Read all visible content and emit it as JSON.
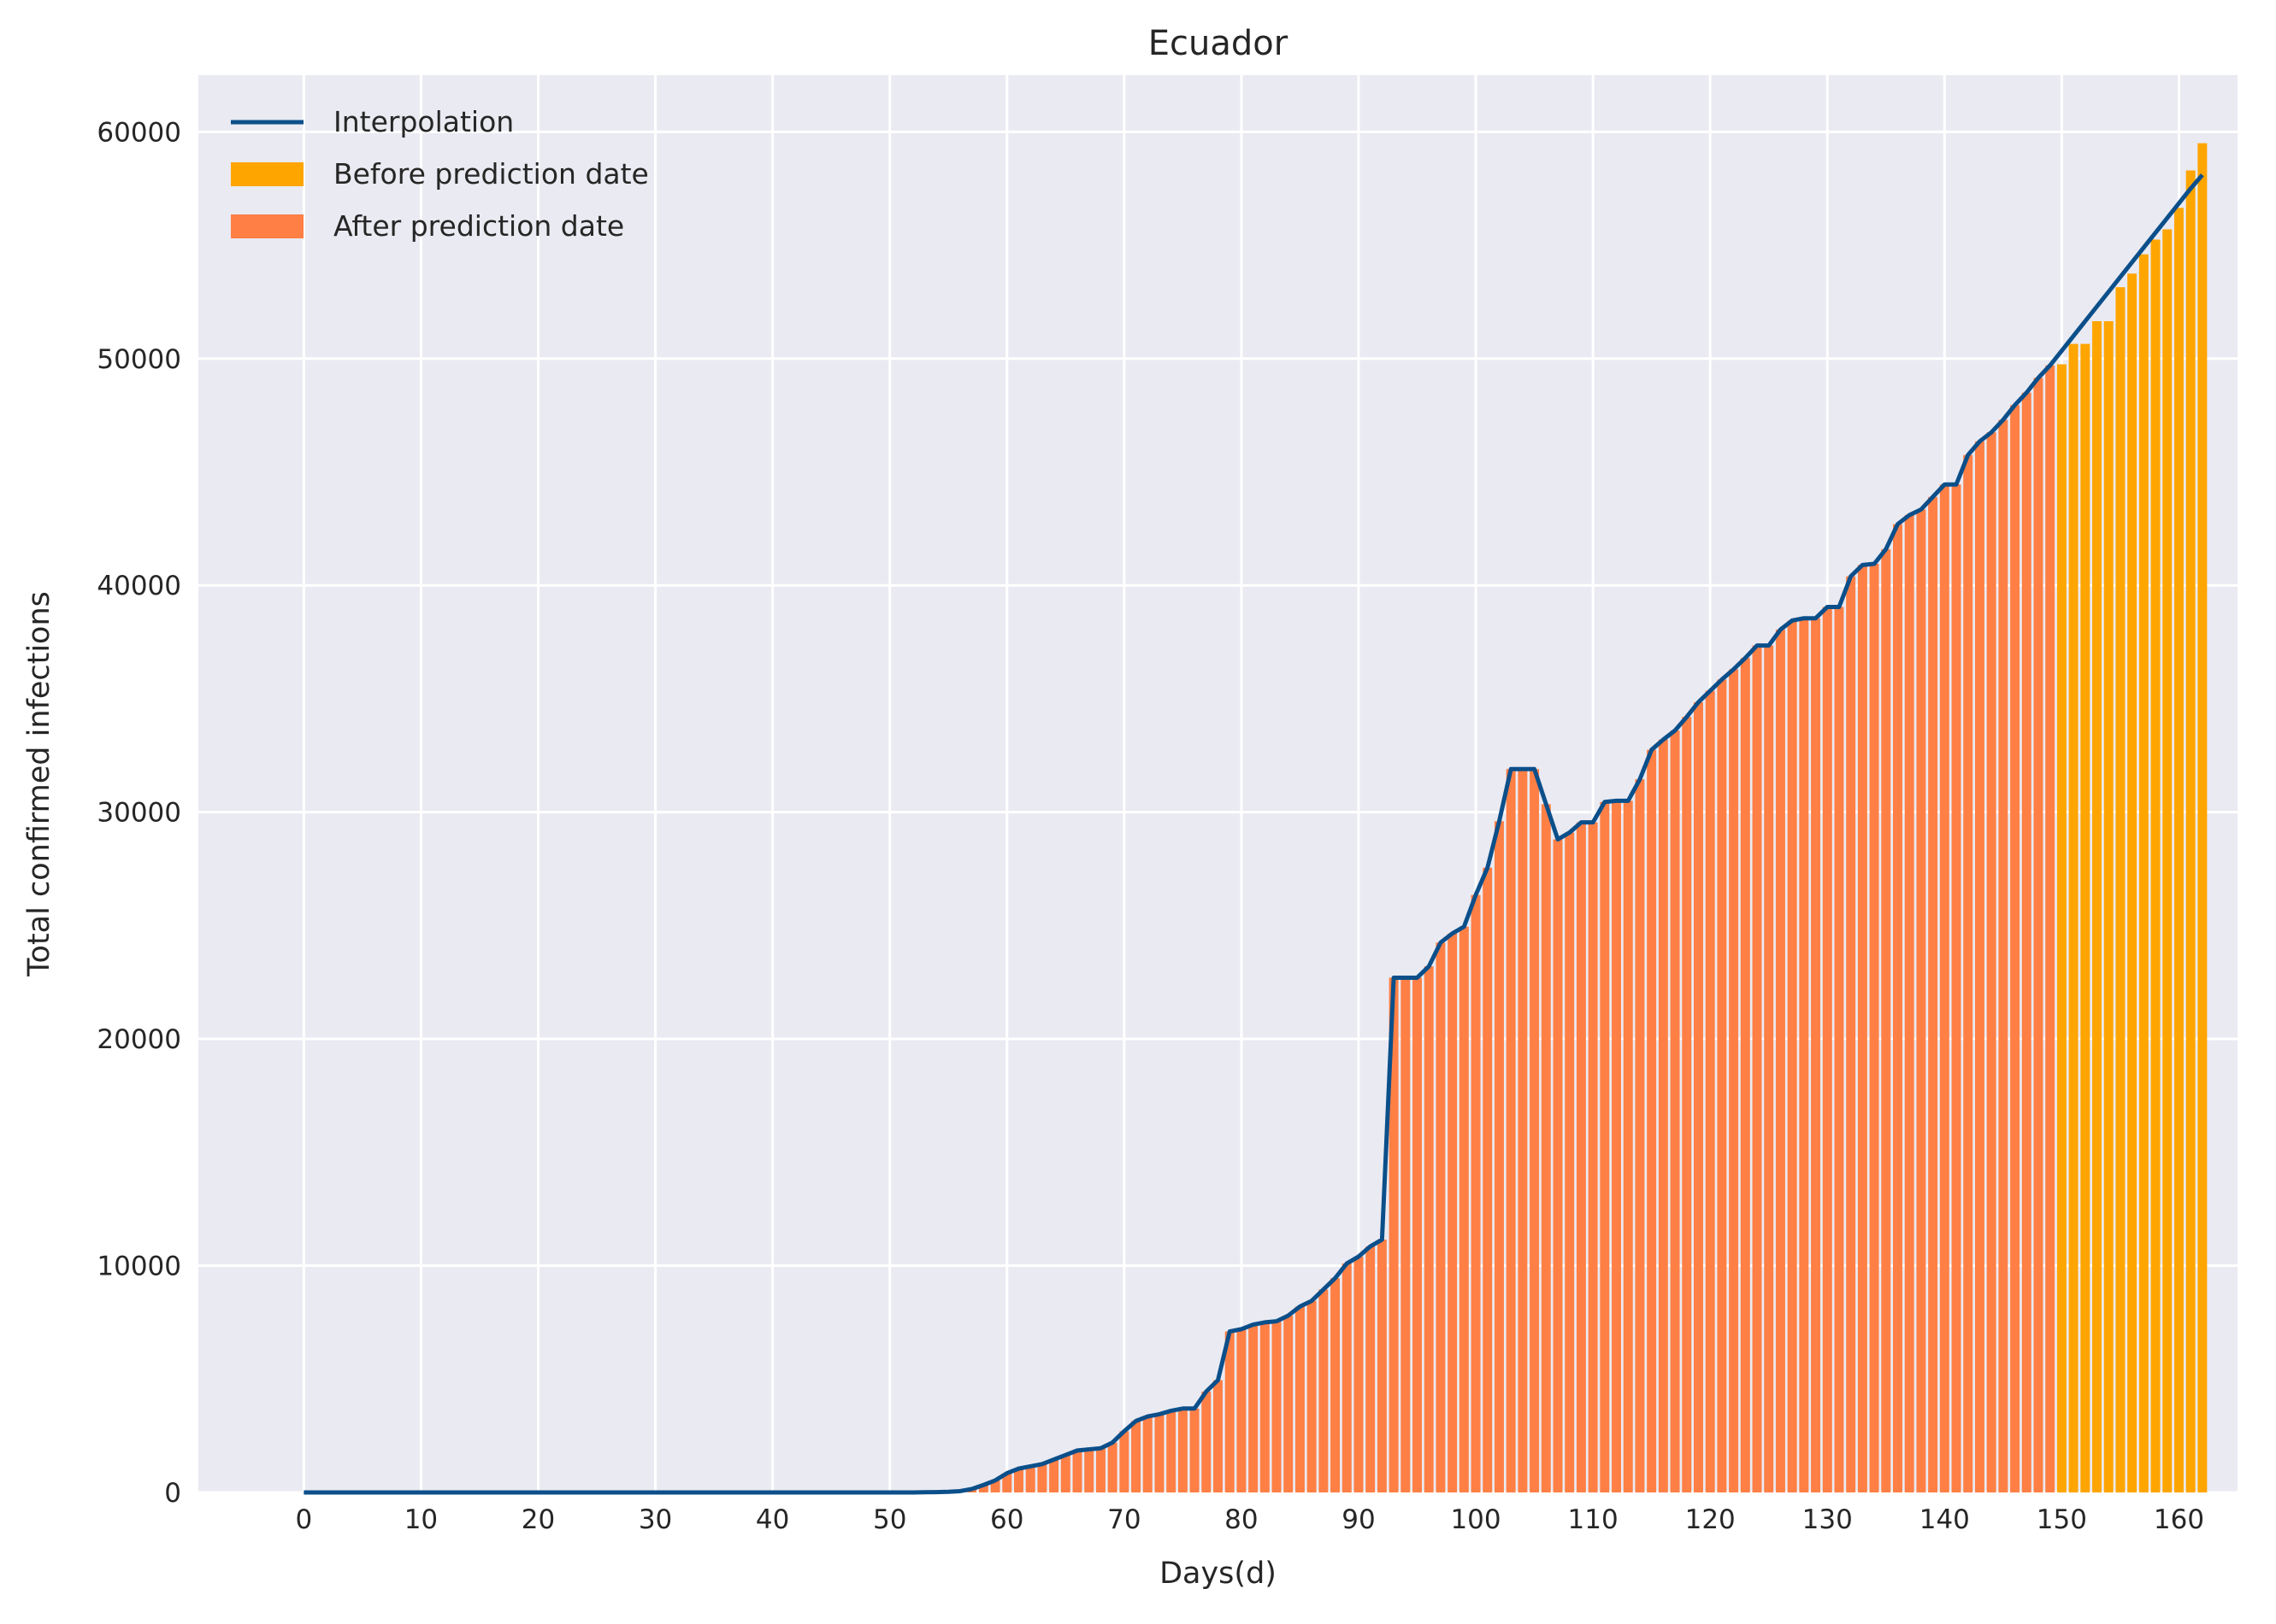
{
  "chart_data": {
    "type": "bar",
    "title": "Ecuador",
    "xlabel": "Days(d)",
    "ylabel": "Total confirmed infections",
    "xlim": [
      -9,
      165
    ],
    "ylim": [
      0,
      62500
    ],
    "xticks": [
      0,
      10,
      20,
      30,
      40,
      50,
      60,
      70,
      80,
      90,
      100,
      110,
      120,
      130,
      140,
      150,
      160
    ],
    "yticks": [
      0,
      10000,
      20000,
      30000,
      40000,
      50000,
      60000
    ],
    "grid": true,
    "legend_position": "top-left",
    "prediction_split_day": 150,
    "legend": [
      {
        "label": "Interpolation",
        "kind": "line",
        "color": "#0b4f8a"
      },
      {
        "label": "Before prediction date",
        "kind": "patch",
        "color": "#ffa500"
      },
      {
        "label": "After prediction date",
        "kind": "patch",
        "color": "#ff7f45"
      }
    ],
    "colors": {
      "background": "#eaeaf2",
      "after_bars": "#ff7f45",
      "before_bars": "#ffa500",
      "interpolation_line": "#0b4f8a"
    },
    "series": [
      {
        "name": "After prediction date",
        "x_start": 0,
        "values": [
          0,
          0,
          0,
          0,
          0,
          0,
          0,
          0,
          0,
          0,
          0,
          0,
          0,
          0,
          0,
          0,
          0,
          0,
          0,
          0,
          0,
          0,
          0,
          0,
          0,
          0,
          0,
          0,
          0,
          0,
          0,
          0,
          0,
          0,
          0,
          0,
          0,
          0,
          0,
          0,
          0,
          0,
          0,
          0,
          0,
          0,
          0,
          0,
          0,
          0,
          0,
          0,
          0,
          10,
          15,
          28,
          58,
          150,
          330,
          530,
          850,
          1050,
          1150,
          1250,
          1450,
          1650,
          1850,
          1900,
          1950,
          2200,
          2700,
          3150,
          3350,
          3450,
          3600,
          3700,
          3700,
          4450,
          4950,
          7100,
          7200,
          7400,
          7500,
          7550,
          7800,
          8200,
          8450,
          8950,
          9450,
          10100,
          10400,
          10850,
          11150,
          22700,
          22700,
          22700,
          23200,
          24250,
          24650,
          24950,
          26350,
          27550,
          29600,
          31900,
          31900,
          31900,
          30350,
          28800,
          29100,
          29550,
          29550,
          30450,
          30500,
          30500,
          31450,
          32750,
          33200,
          33600,
          34200,
          34850,
          35350,
          35850,
          36300,
          36800,
          37350,
          37350,
          38050,
          38450,
          38550,
          38550,
          39050,
          39050,
          40400,
          40900,
          40950,
          41600,
          42700,
          43100,
          43350,
          43900,
          44450,
          44450,
          45750,
          46350,
          46750,
          47300,
          47950,
          48500,
          49150,
          49700
        ]
      },
      {
        "name": "Before prediction date",
        "x_start": 150,
        "values": [
          49750,
          50650,
          50650,
          51650,
          51650,
          53150,
          53750,
          54600,
          55250,
          55700,
          56650,
          58300,
          59500
        ]
      },
      {
        "name": "Interpolation",
        "x_start": 0,
        "values": [
          0,
          0,
          0,
          0,
          0,
          0,
          0,
          0,
          0,
          0,
          0,
          0,
          0,
          0,
          0,
          0,
          0,
          0,
          0,
          0,
          0,
          0,
          0,
          0,
          0,
          0,
          0,
          0,
          0,
          0,
          0,
          0,
          0,
          0,
          0,
          0,
          0,
          0,
          0,
          0,
          0,
          0,
          0,
          0,
          0,
          0,
          0,
          0,
          0,
          0,
          0,
          0,
          0,
          10,
          15,
          28,
          58,
          150,
          330,
          530,
          850,
          1050,
          1150,
          1250,
          1450,
          1650,
          1850,
          1900,
          1950,
          2200,
          2700,
          3150,
          3350,
          3450,
          3600,
          3700,
          3700,
          4450,
          4950,
          7100,
          7200,
          7400,
          7500,
          7550,
          7800,
          8200,
          8450,
          8950,
          9450,
          10100,
          10400,
          10850,
          11150,
          22700,
          22700,
          22700,
          23200,
          24250,
          24650,
          24950,
          26350,
          27550,
          29600,
          31900,
          31900,
          31900,
          30350,
          28800,
          29100,
          29550,
          29550,
          30450,
          30500,
          30500,
          31450,
          32750,
          33200,
          33600,
          34200,
          34850,
          35350,
          35850,
          36300,
          36800,
          37350,
          37350,
          38050,
          38450,
          38550,
          38550,
          39050,
          39050,
          40400,
          40900,
          40950,
          41600,
          42700,
          43100,
          43350,
          43900,
          44450,
          44450,
          45750,
          46350,
          46750,
          47300,
          47950,
          48500,
          49150,
          49700,
          50350,
          51000,
          51650,
          52300,
          52950,
          53600,
          54250,
          54900,
          55550,
          56200,
          56850,
          57500,
          58100
        ]
      }
    ]
  }
}
